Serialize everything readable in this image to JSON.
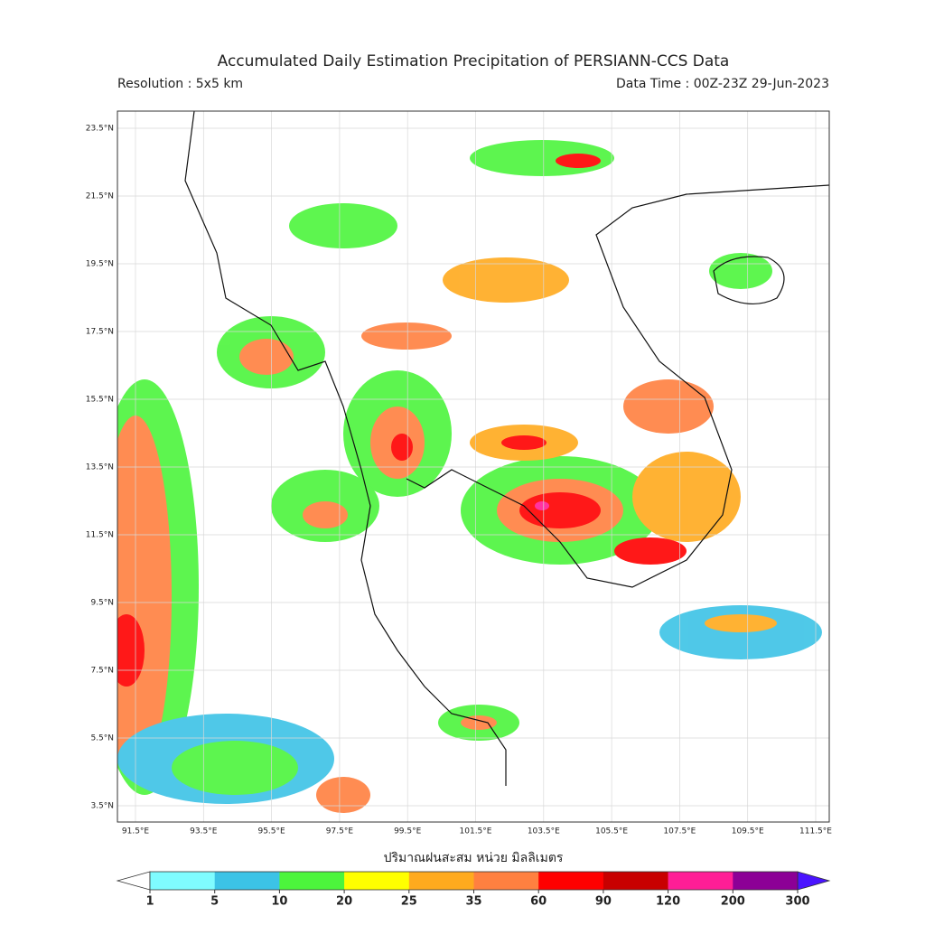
{
  "header": {
    "title": "Accumulated Daily Estimation Precipitation of PERSIANN-CCS Data",
    "resolution": "Resolution : 5x5 km",
    "data_time": "Data Time : 00Z-23Z 29-Jun-2023"
  },
  "map": {
    "lat_ticks": [
      "23.5°N",
      "21.5°N",
      "19.5°N",
      "17.5°N",
      "15.5°N",
      "13.5°N",
      "11.5°N",
      "9.5°N",
      "7.5°N",
      "5.5°N",
      "3.5°N"
    ],
    "lon_ticks": [
      "91.5°E",
      "93.5°E",
      "95.5°E",
      "97.5°E",
      "99.5°E",
      "101.5°E",
      "103.5°E",
      "105.5°E",
      "107.5°E",
      "109.5°E",
      "111.5°E"
    ]
  },
  "colorbar": {
    "label": "ปริมาณฝนสะสม หน่วย มิลลิเมตร",
    "ticks": [
      1,
      5,
      10,
      20,
      25,
      35,
      60,
      90,
      120,
      200,
      300
    ],
    "colors": [
      "#7ffcff",
      "#3cc3e6",
      "#4cf53c",
      "#ffff00",
      "#ffaa1e",
      "#ff8040",
      "#ff0000",
      "#c80000",
      "#ff1e96",
      "#8c0096"
    ],
    "under_color": "#ffffff",
    "over_color": "#4a14ff"
  }
}
